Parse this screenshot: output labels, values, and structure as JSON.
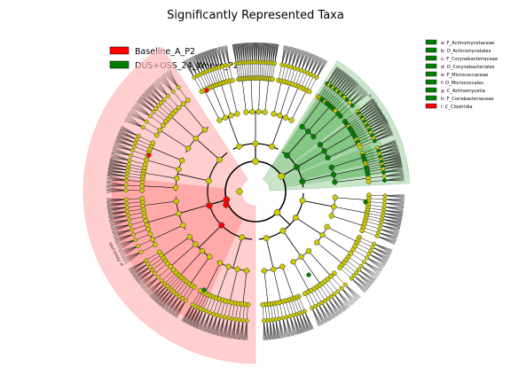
{
  "chart_data": {
    "type": "cladogram",
    "title": "Significantly Represented Taxa",
    "legend": {
      "placement": "top-left",
      "entries": [
        {
          "name": "Baseline_A_P2",
          "color": "#ff0000"
        },
        {
          "name": "DUS+OSS_24_Weeks_P2",
          "color": "#008000"
        }
      ]
    },
    "key": {
      "placement": "top-right",
      "entries": [
        {
          "label": "a: F_Actinomycetaceae",
          "group": "DUS+OSS_24_Weeks_P2"
        },
        {
          "label": "b: O_Actinomycetales",
          "group": "DUS+OSS_24_Weeks_P2"
        },
        {
          "label": "c: F_Corynebacteriaceae",
          "group": "DUS+OSS_24_Weeks_P2"
        },
        {
          "label": "d: O_Corynebacteriales",
          "group": "DUS+OSS_24_Weeks_P2"
        },
        {
          "label": "e: F_Micrococcaceae",
          "group": "DUS+OSS_24_Weeks_P2"
        },
        {
          "label": "f: O_Micrococcales",
          "group": "DUS+OSS_24_Weeks_P2"
        },
        {
          "label": "g: C_Actinomycetia",
          "group": "DUS+OSS_24_Weeks_P2"
        },
        {
          "label": "h: F_Coriobacteriaceae",
          "group": "DUS+OSS_24_Weeks_P2"
        },
        {
          "label": "i: C_Clostridia",
          "group": "Baseline_A_P2"
        }
      ]
    },
    "clade_labels": [
      {
        "text": "p: Actinobacteria",
        "group": "DUS+OSS_24_Weeks_P2"
      },
      {
        "text": "p: Firmicutes",
        "group": "Baseline_A_P2"
      },
      {
        "text": "i",
        "group": "Baseline_A_P2"
      }
    ],
    "colors": {
      "neutral_node": "#cccc00",
      "baseline": "#ff0000",
      "treatment": "#008000",
      "baseline_shade": "#ffb3b3",
      "treatment_shade": "#9fd19f"
    }
  }
}
